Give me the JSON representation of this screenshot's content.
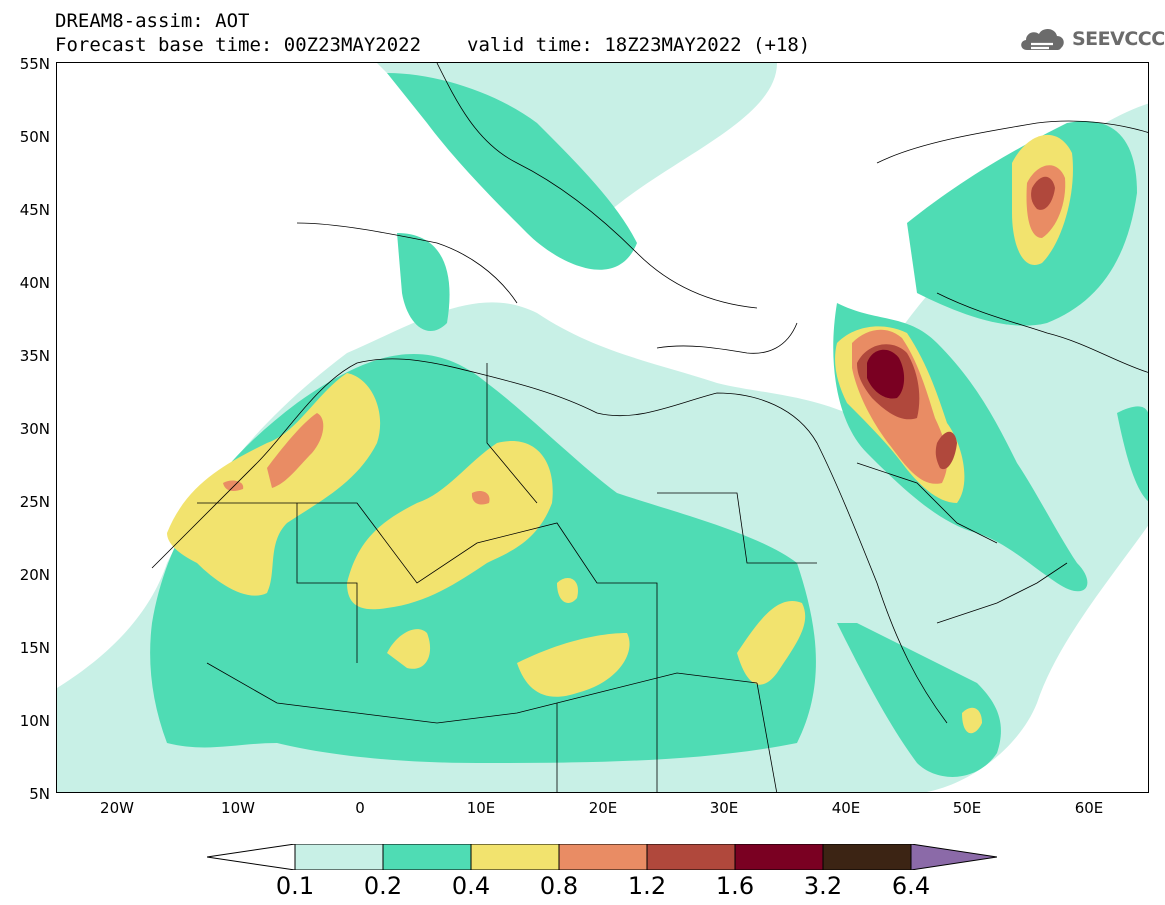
{
  "header": {
    "title_line1": "DREAM8-assim: AOT",
    "base_time": "Forecast base time: 00Z23MAY2022",
    "valid_time": "valid time: 18Z23MAY2022 (+18)"
  },
  "logo": {
    "text": "SEEVCCC",
    "icon": "cloud-icon",
    "color": "#6b6b6b"
  },
  "map": {
    "lat_labels": [
      "55N",
      "50N",
      "45N",
      "40N",
      "35N",
      "30N",
      "25N",
      "20N",
      "15N",
      "10N",
      "5N"
    ],
    "lon_labels": [
      "20W",
      "10W",
      "0",
      "10E",
      "20E",
      "30E",
      "40E",
      "50E",
      "60E"
    ],
    "lon_range": [
      -25,
      65
    ],
    "lat_range": [
      5,
      55
    ]
  },
  "legend": {
    "levels": [
      "0.1",
      "0.2",
      "0.4",
      "0.8",
      "1.2",
      "1.6",
      "3.2",
      "6.4"
    ],
    "colors": {
      "below": "#ffffff",
      "c1": "#c8f0e6",
      "c2": "#4fdcb4",
      "c3": "#f2e36e",
      "c4": "#e98c64",
      "c5": "#b0483c",
      "c6": "#7a0022",
      "c7": "#3c2414",
      "above": "#8b6aa8"
    }
  }
}
